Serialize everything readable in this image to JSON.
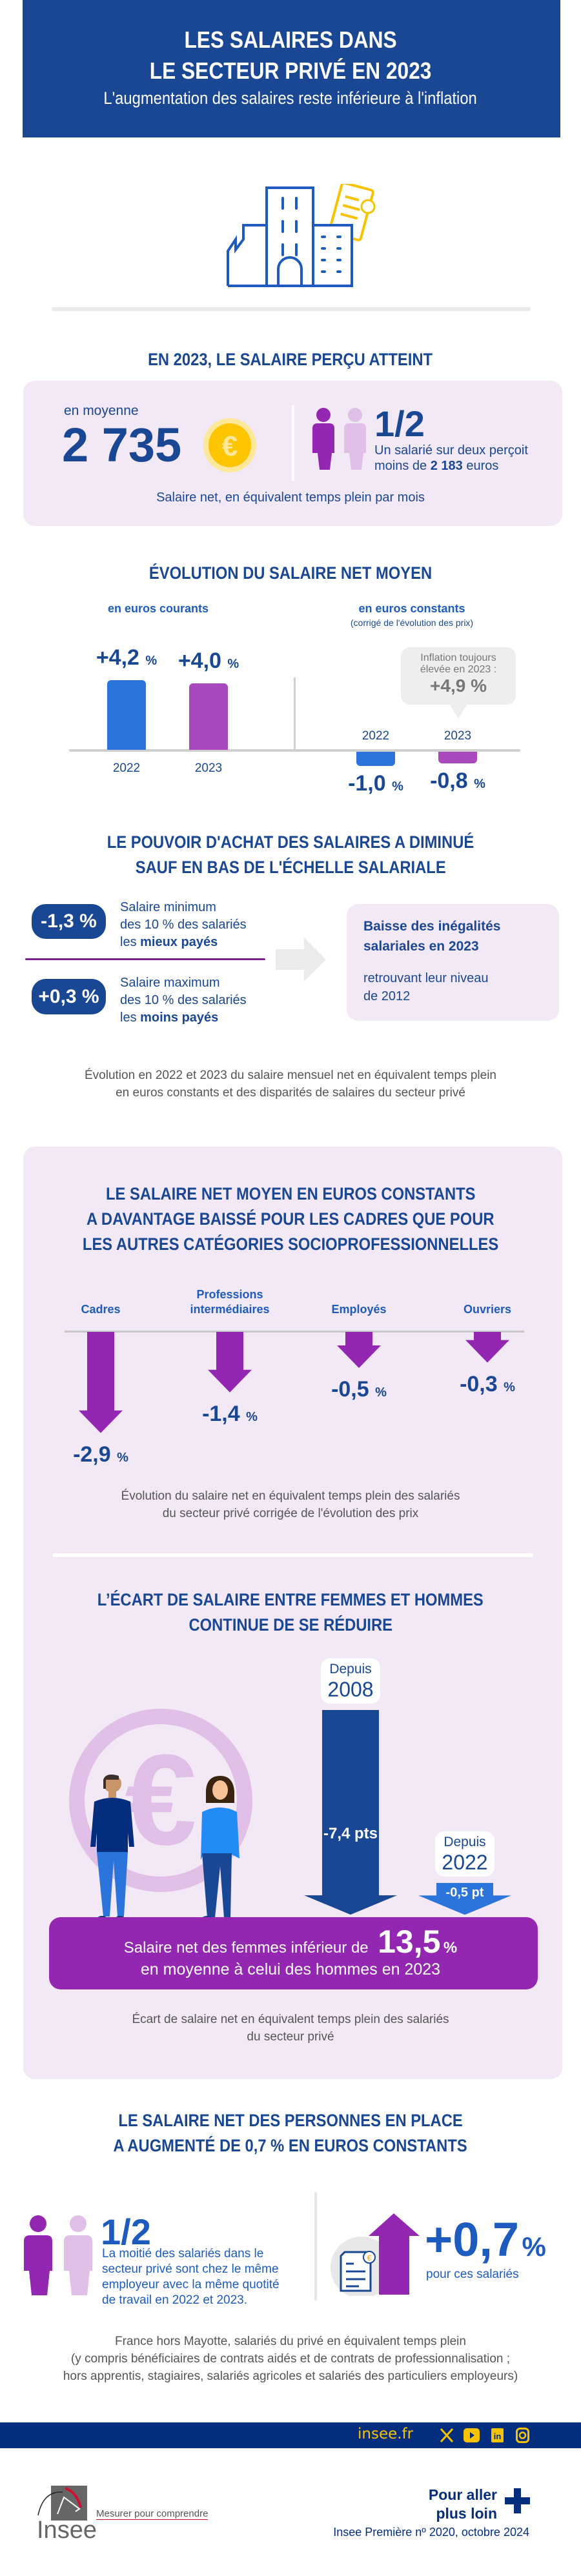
{
  "header": {
    "title_line1": "LES SALAIRES DANS",
    "title_line2": "LE SECTEUR PRIVÉ EN 2023",
    "subtitle": "L'augmentation des salaires reste inférieure à l'inflation"
  },
  "salary": {
    "heading": "EN 2023, LE SALAIRE PERÇU ATTEINT",
    "avg_label": "en moyenne",
    "avg_value": "2 735",
    "half": "1/2",
    "half_line1": "Un salarié sur deux perçoit",
    "half_line2_prefix": "moins de ",
    "median": "2 183",
    "half_line2_suffix": " euros",
    "caption": "Salaire net, en équivalent temps plein par mois"
  },
  "evolution": {
    "heading": "ÉVOLUTION DU SALAIRE NET MOYEN",
    "current_label": "en euros courants",
    "constant_label": "en euros constants",
    "constant_sub": "(corrigé de l'évolution des prix)",
    "pct": "%",
    "current": [
      {
        "year": "2022",
        "value": 4.2,
        "label": "+4,2"
      },
      {
        "year": "2023",
        "value": 4.0,
        "label": "+4,0"
      }
    ],
    "constant": [
      {
        "year": "2022",
        "value": -1.0,
        "label": "-1,0"
      },
      {
        "year": "2023",
        "value": -0.8,
        "label": "-0,8"
      }
    ],
    "inflation": {
      "line1": "Inflation toujours",
      "line2": "élevée en 2023 :",
      "value": "+4,9 %"
    }
  },
  "purchasing": {
    "heading_line1": "LE POUVOIR D'ACHAT DES SALAIRES A DIMINUÉ",
    "heading_line2": "SAUF EN BAS DE L'ÉCHELLE SALARIALE",
    "top": {
      "badge": "-1,3 %",
      "line1": "Salaire minimum",
      "line2": "des 10 % des salariés",
      "line3_prefix": "les ",
      "line3_bold": "mieux payés"
    },
    "bottom": {
      "badge": "+0,3 %",
      "line1": "Salaire maximum",
      "line2": "des 10 % des salariés",
      "line3_prefix": "les ",
      "line3_bold": "moins payés"
    },
    "box": {
      "line1": "Baisse des inégalités",
      "line2": "salariales en 2023",
      "line3": "retrouvant leur niveau",
      "line4": "de 2012"
    },
    "caption_line1": "Évolution en 2022 et 2023 du salaire mensuel net en équivalent temps plein",
    "caption_line2": "en euros constants et des disparités de salaires du secteur privé"
  },
  "categories": {
    "heading_line1": "LE SALAIRE NET MOYEN EN EUROS CONSTANTS",
    "heading_line2": "A DAVANTAGE BAISSÉ POUR LES CADRES QUE POUR",
    "heading_line3": "LES AUTRES CATÉGORIES SOCIOPROFESSIONNELLES",
    "pct": "%",
    "items": [
      {
        "line1": "",
        "line2": "Cadres",
        "value": -2.9,
        "label": "-2,9"
      },
      {
        "line1": "Professions",
        "line2": "intermédiaires",
        "value": -1.4,
        "label": "-1,4"
      },
      {
        "line1": "",
        "line2": "Employés",
        "value": -0.5,
        "label": "-0,5"
      },
      {
        "line1": "",
        "line2": "Ouvriers",
        "value": -0.3,
        "label": "-0,3"
      }
    ],
    "caption_line1": "Évolution du salaire net en équivalent temps plein des salariés",
    "caption_line2": "du secteur privé corrigée de l'évolution des prix"
  },
  "gender": {
    "heading_line1": "L’ÉCART DE SALAIRE ENTRE FEMMES ET HOMMES",
    "heading_line2": "CONTINUE DE SE RÉDUIRE",
    "periods": [
      {
        "depuis": "Depuis",
        "year": "2008",
        "value": 7.4,
        "label": "-7,4 pts"
      },
      {
        "depuis": "Depuis",
        "year": "2022",
        "value": 0.5,
        "label": "-0,5 pt"
      }
    ],
    "banner_prefix": "Salaire net des femmes inférieur de",
    "banner_value": "13,5",
    "banner_pct": "%",
    "banner_line2": "en moyenne à celui des hommes en 2023",
    "caption_line1": "Écart de salaire net en équivalent temps plein des salariés",
    "caption_line2": "du secteur privé"
  },
  "stayers": {
    "heading_line1": "LE SALAIRE NET DES PERSONNES EN PLACE",
    "heading_line2": "A AUGMENTÉ DE 0,7 % EN EUROS CONSTANTS",
    "half": "1/2",
    "text_lines": [
      "La moitié des salariés dans le",
      "secteur privé sont chez le même",
      "employeur avec la même quotité",
      "de travail en 2022 et 2023."
    ],
    "value": "+0,7",
    "pct": "%",
    "value_caption": "pour ces salariés"
  },
  "footnote": [
    "France hors Mayotte, salariés du privé en équivalent temps plein",
    "(y compris bénéficiaires de contrats aidés et de contrats de professionnalisation ;",
    "hors apprentis, stagiaires, salariés agricoles et salariés des particuliers employeurs)"
  ],
  "footer": {
    "site": "insee.fr",
    "social": [
      "x-icon",
      "youtube-icon",
      "linkedin-icon",
      "instagram-icon"
    ],
    "logo_text": "Insee",
    "tagline": "Mesurer pour comprendre",
    "more_line1": "Pour aller",
    "more_line2": "plus loin",
    "publication": "Insee Première nº 2020, octobre 2024"
  },
  "colors": {
    "navy": "#1a4793",
    "blue": "#2a74dc",
    "purple": "#9427b1",
    "violet": "#aa48bd",
    "pink_bg": "#f3e8f5",
    "footer": "#052d7e",
    "yellow": "#f7c300"
  }
}
